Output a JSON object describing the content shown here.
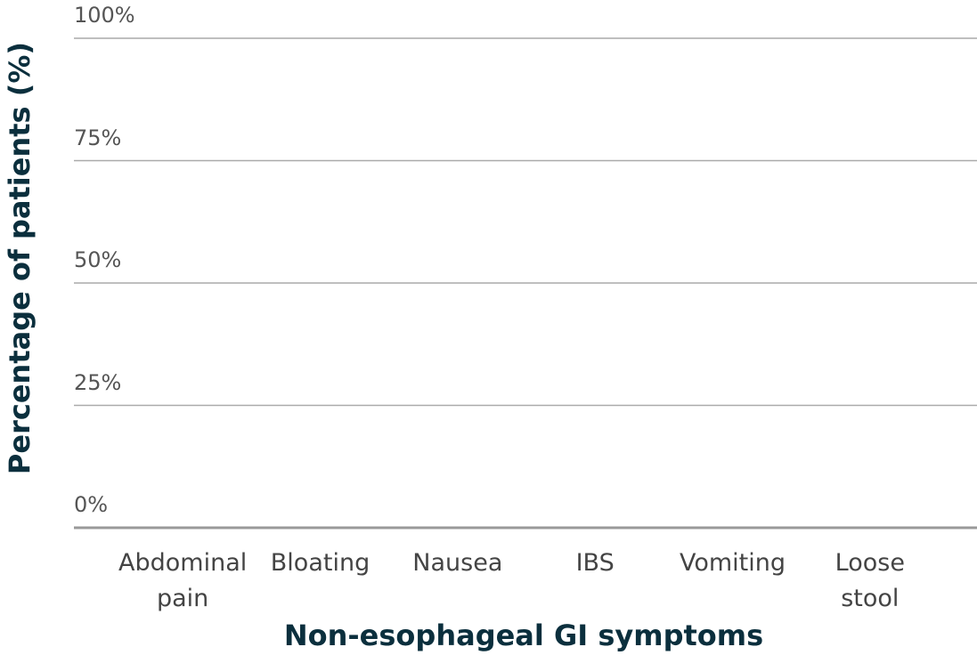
{
  "chart_data": {
    "type": "bar",
    "categories": [
      "Abdominal pain",
      "Bloating",
      "Nausea",
      "IBS",
      "Vomiting",
      "Loose stool"
    ],
    "xlabel": "Non-esophageal GI symptoms",
    "ylabel": "Percentage of patients (%)",
    "ylim": [
      0,
      100
    ],
    "yticks": [
      {
        "value": 0,
        "label": "0%"
      },
      {
        "value": 25,
        "label": "25%"
      },
      {
        "value": 50,
        "label": "50%"
      },
      {
        "value": 75,
        "label": "75%"
      },
      {
        "value": 100,
        "label": "100%"
      }
    ],
    "grid": true
  }
}
